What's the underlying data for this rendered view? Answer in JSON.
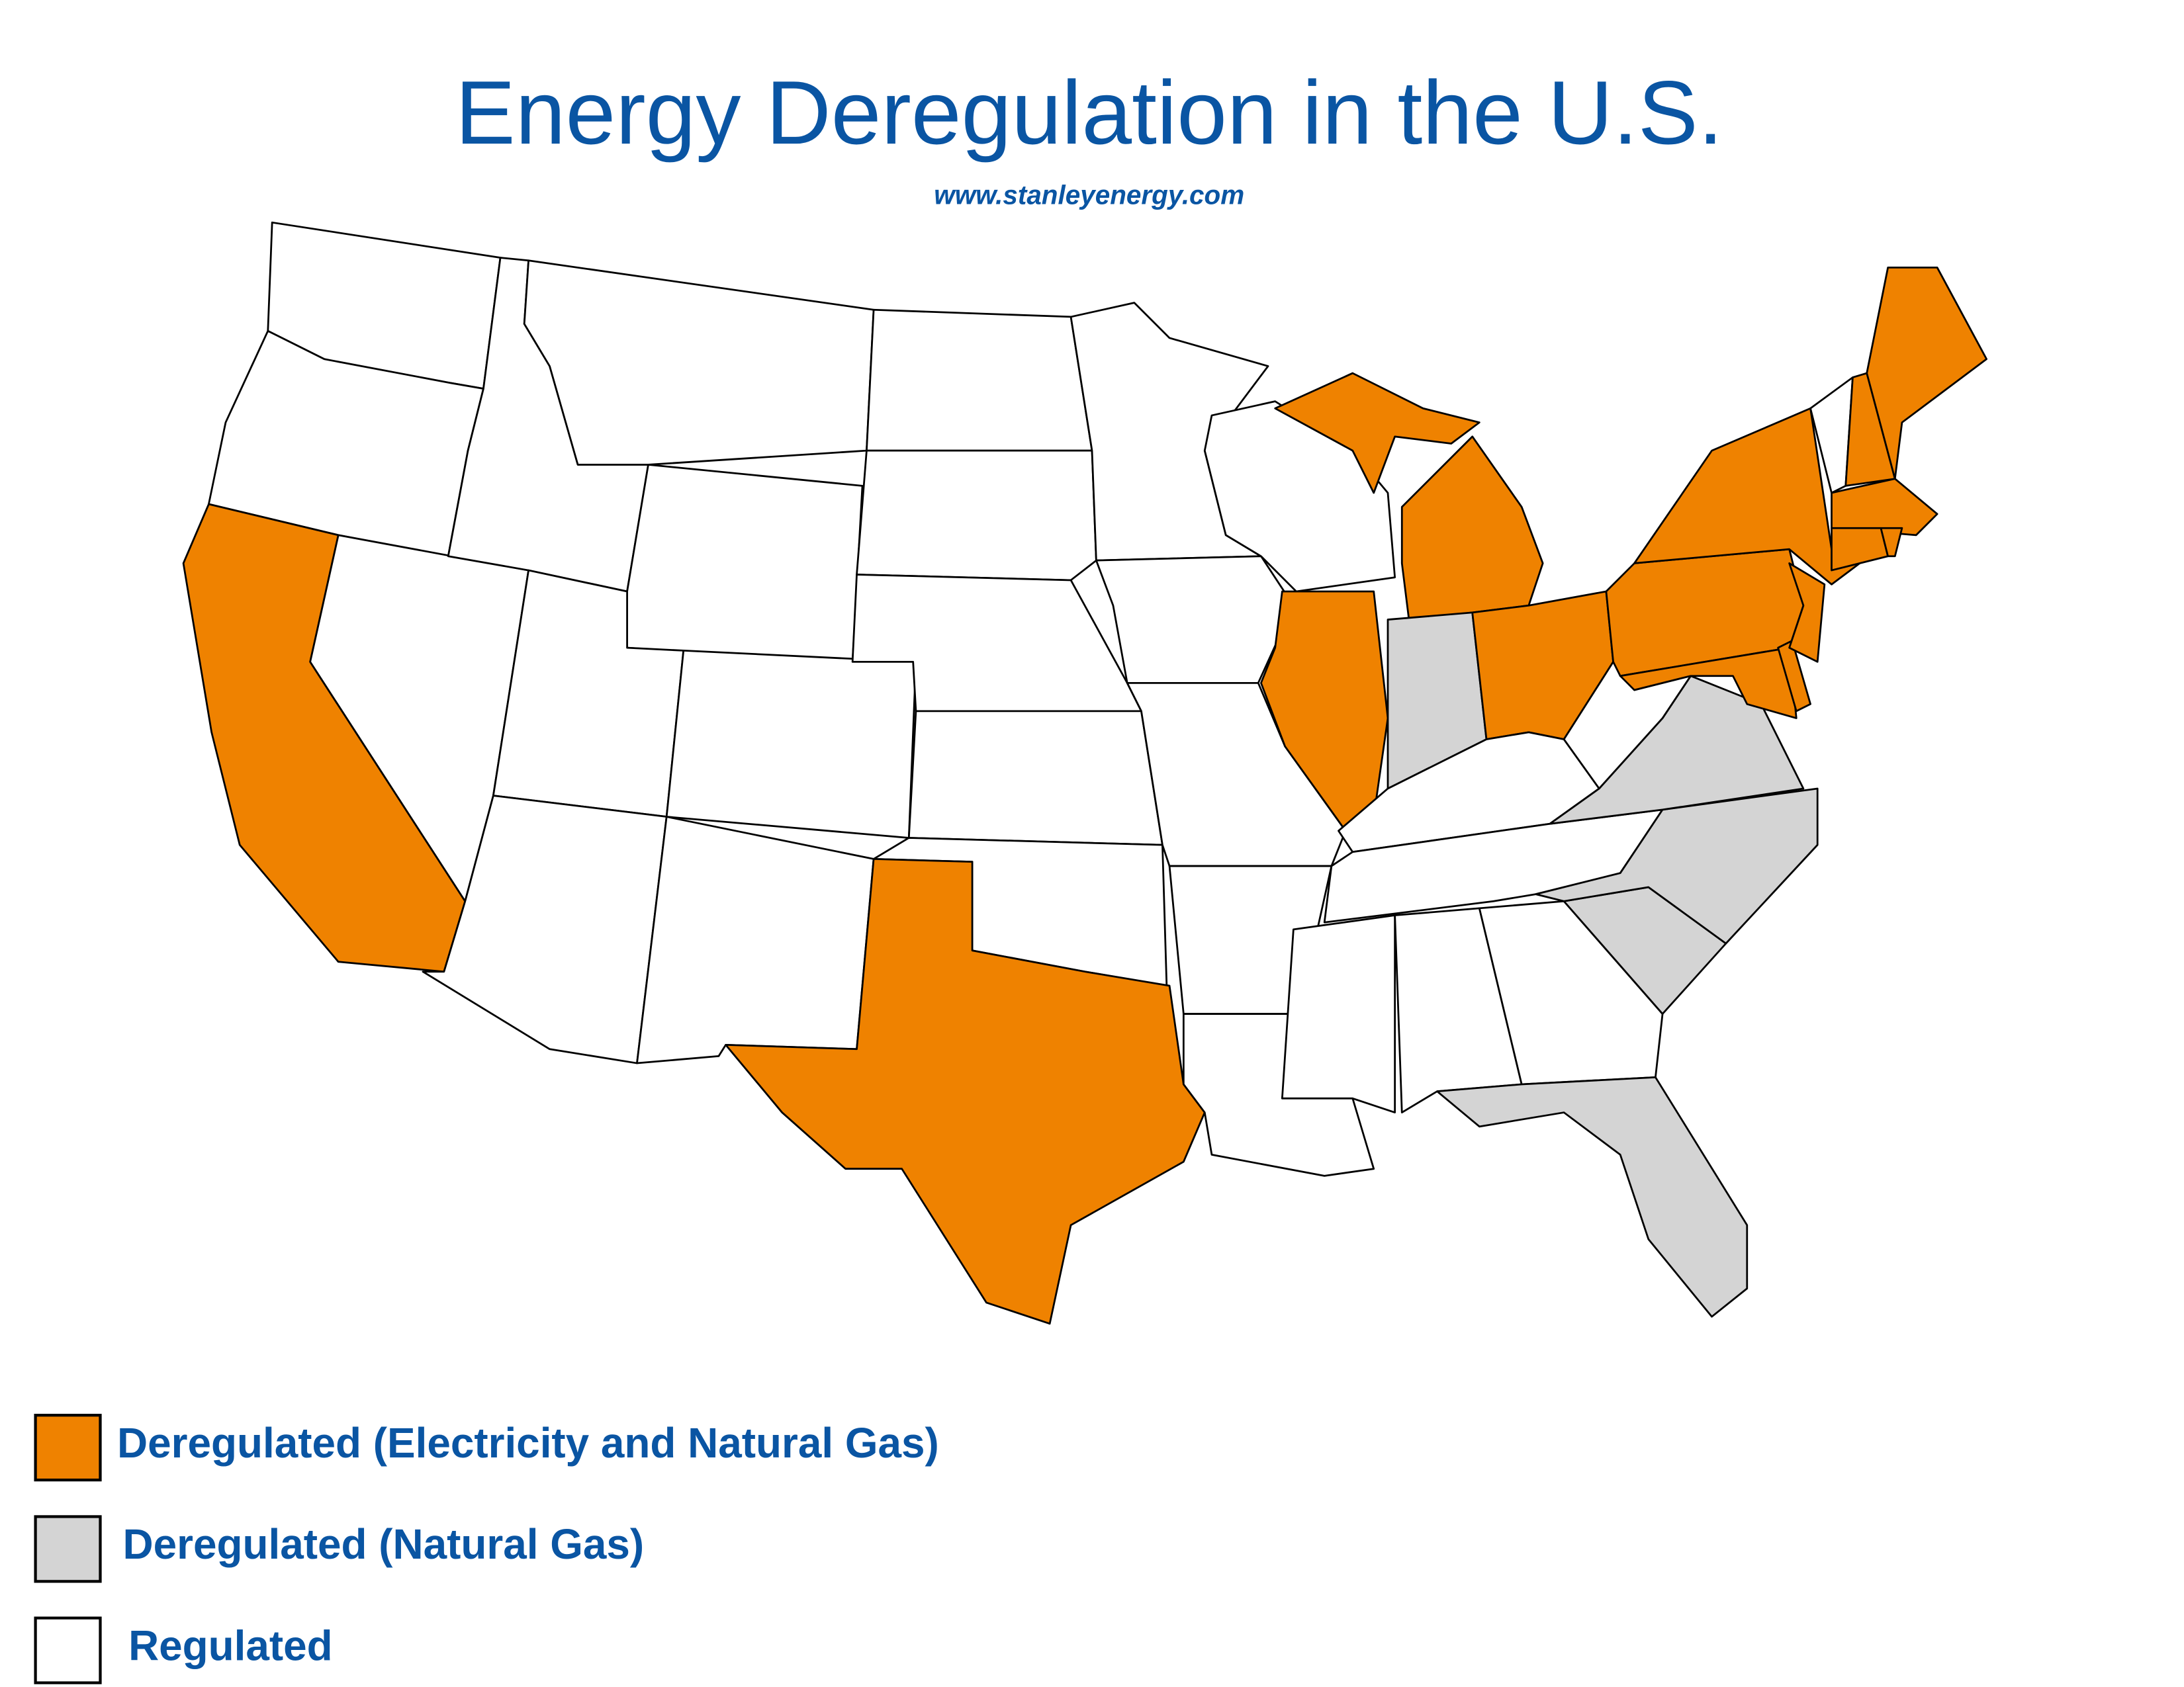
{
  "header": {
    "title": "Energy Deregulation in the U.S.",
    "subtitle": "www.stanleyenergy.com"
  },
  "legend": {
    "items": [
      {
        "label": "Deregulated (Electricity and Natural Gas)",
        "color": "#ef8200"
      },
      {
        "label": "Deregulated (Natural Gas)",
        "color": "#d4d4d4"
      },
      {
        "label": "Regulated",
        "color": "#ffffff"
      }
    ]
  }
}
